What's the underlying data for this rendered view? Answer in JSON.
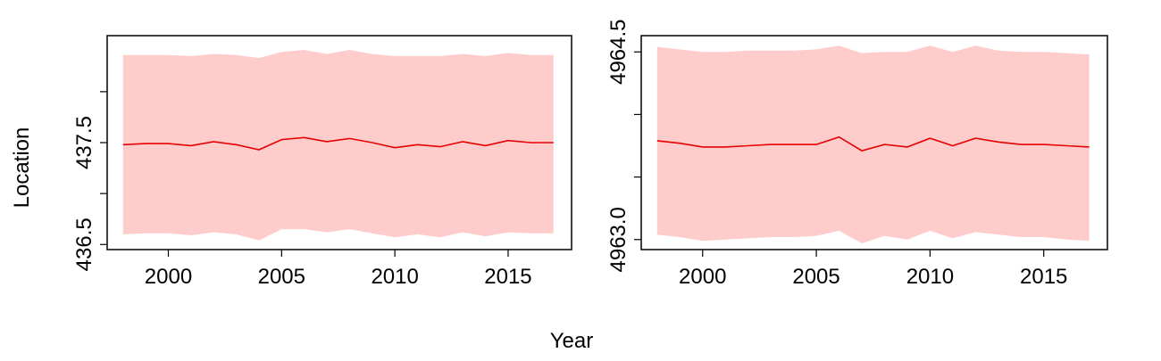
{
  "figure": {
    "shared_xlabel": "Year",
    "shared_ylabel": "Location"
  },
  "colors": {
    "band": "#ffcccc",
    "line": "#e60000",
    "axis": "#000000"
  },
  "chart_data": [
    {
      "type": "line",
      "xlim": [
        1997.3,
        2017.8
      ],
      "ylim": [
        436.45,
        438.55
      ],
      "x_ticks": [
        2000,
        2005,
        2010,
        2015
      ],
      "y_ticks_labeled": [
        436.5,
        437.5
      ],
      "y_tick_labels": [
        "436.5",
        "437.5"
      ],
      "y_ticks_minor": [
        437.0,
        438.0
      ],
      "x": [
        1998,
        1999,
        2000,
        2001,
        2002,
        2003,
        2004,
        2005,
        2006,
        2007,
        2008,
        2009,
        2010,
        2011,
        2012,
        2013,
        2014,
        2015,
        2016,
        2017
      ],
      "series": [
        {
          "values": [
            437.48,
            437.49,
            437.49,
            437.47,
            437.51,
            437.48,
            437.43,
            437.53,
            437.55,
            437.51,
            437.54,
            437.5,
            437.45,
            437.48,
            437.46,
            437.51,
            437.47,
            437.52,
            437.5,
            437.5
          ]
        }
      ],
      "band_upper": [
        438.36,
        438.36,
        438.36,
        438.35,
        438.37,
        438.36,
        438.33,
        438.39,
        438.41,
        438.37,
        438.41,
        438.37,
        438.35,
        438.35,
        438.35,
        438.37,
        438.35,
        438.38,
        438.36,
        438.36
      ],
      "band_lower": [
        436.6,
        436.61,
        436.61,
        436.59,
        436.62,
        436.6,
        436.54,
        436.65,
        436.65,
        436.62,
        436.65,
        436.61,
        436.57,
        436.6,
        436.57,
        436.62,
        436.58,
        436.62,
        436.61,
        436.61
      ]
    },
    {
      "type": "line",
      "xlim": [
        1997.3,
        2017.8
      ],
      "ylim": [
        4962.92,
        4964.63
      ],
      "x_ticks": [
        2000,
        2005,
        2010,
        2015
      ],
      "y_ticks_labeled": [
        4963.0,
        4964.5
      ],
      "y_tick_labels": [
        "4963.0",
        "4964.5"
      ],
      "y_ticks_minor": [
        4963.5,
        4964.0
      ],
      "x": [
        1998,
        1999,
        2000,
        2001,
        2002,
        2003,
        2004,
        2005,
        2006,
        2007,
        2008,
        2009,
        2010,
        2011,
        2012,
        2013,
        2014,
        2015,
        2016,
        2017
      ],
      "series": [
        {
          "values": [
            4963.79,
            4963.77,
            4963.74,
            4963.74,
            4963.75,
            4963.76,
            4963.76,
            4963.76,
            4963.82,
            4963.71,
            4963.76,
            4963.74,
            4963.81,
            4963.75,
            4963.81,
            4963.78,
            4963.76,
            4963.76,
            4963.75,
            4963.74
          ]
        }
      ],
      "band_upper": [
        4964.54,
        4964.52,
        4964.5,
        4964.5,
        4964.51,
        4964.51,
        4964.51,
        4964.52,
        4964.55,
        4964.49,
        4964.5,
        4964.5,
        4964.55,
        4964.5,
        4964.55,
        4964.51,
        4964.5,
        4964.5,
        4964.49,
        4964.48
      ],
      "band_lower": [
        4963.04,
        4963.02,
        4962.99,
        4963.0,
        4963.01,
        4963.02,
        4963.02,
        4963.03,
        4963.07,
        4962.97,
        4963.03,
        4963.0,
        4963.07,
        4963.01,
        4963.06,
        4963.04,
        4963.02,
        4963.02,
        4963.0,
        4962.99
      ]
    }
  ]
}
